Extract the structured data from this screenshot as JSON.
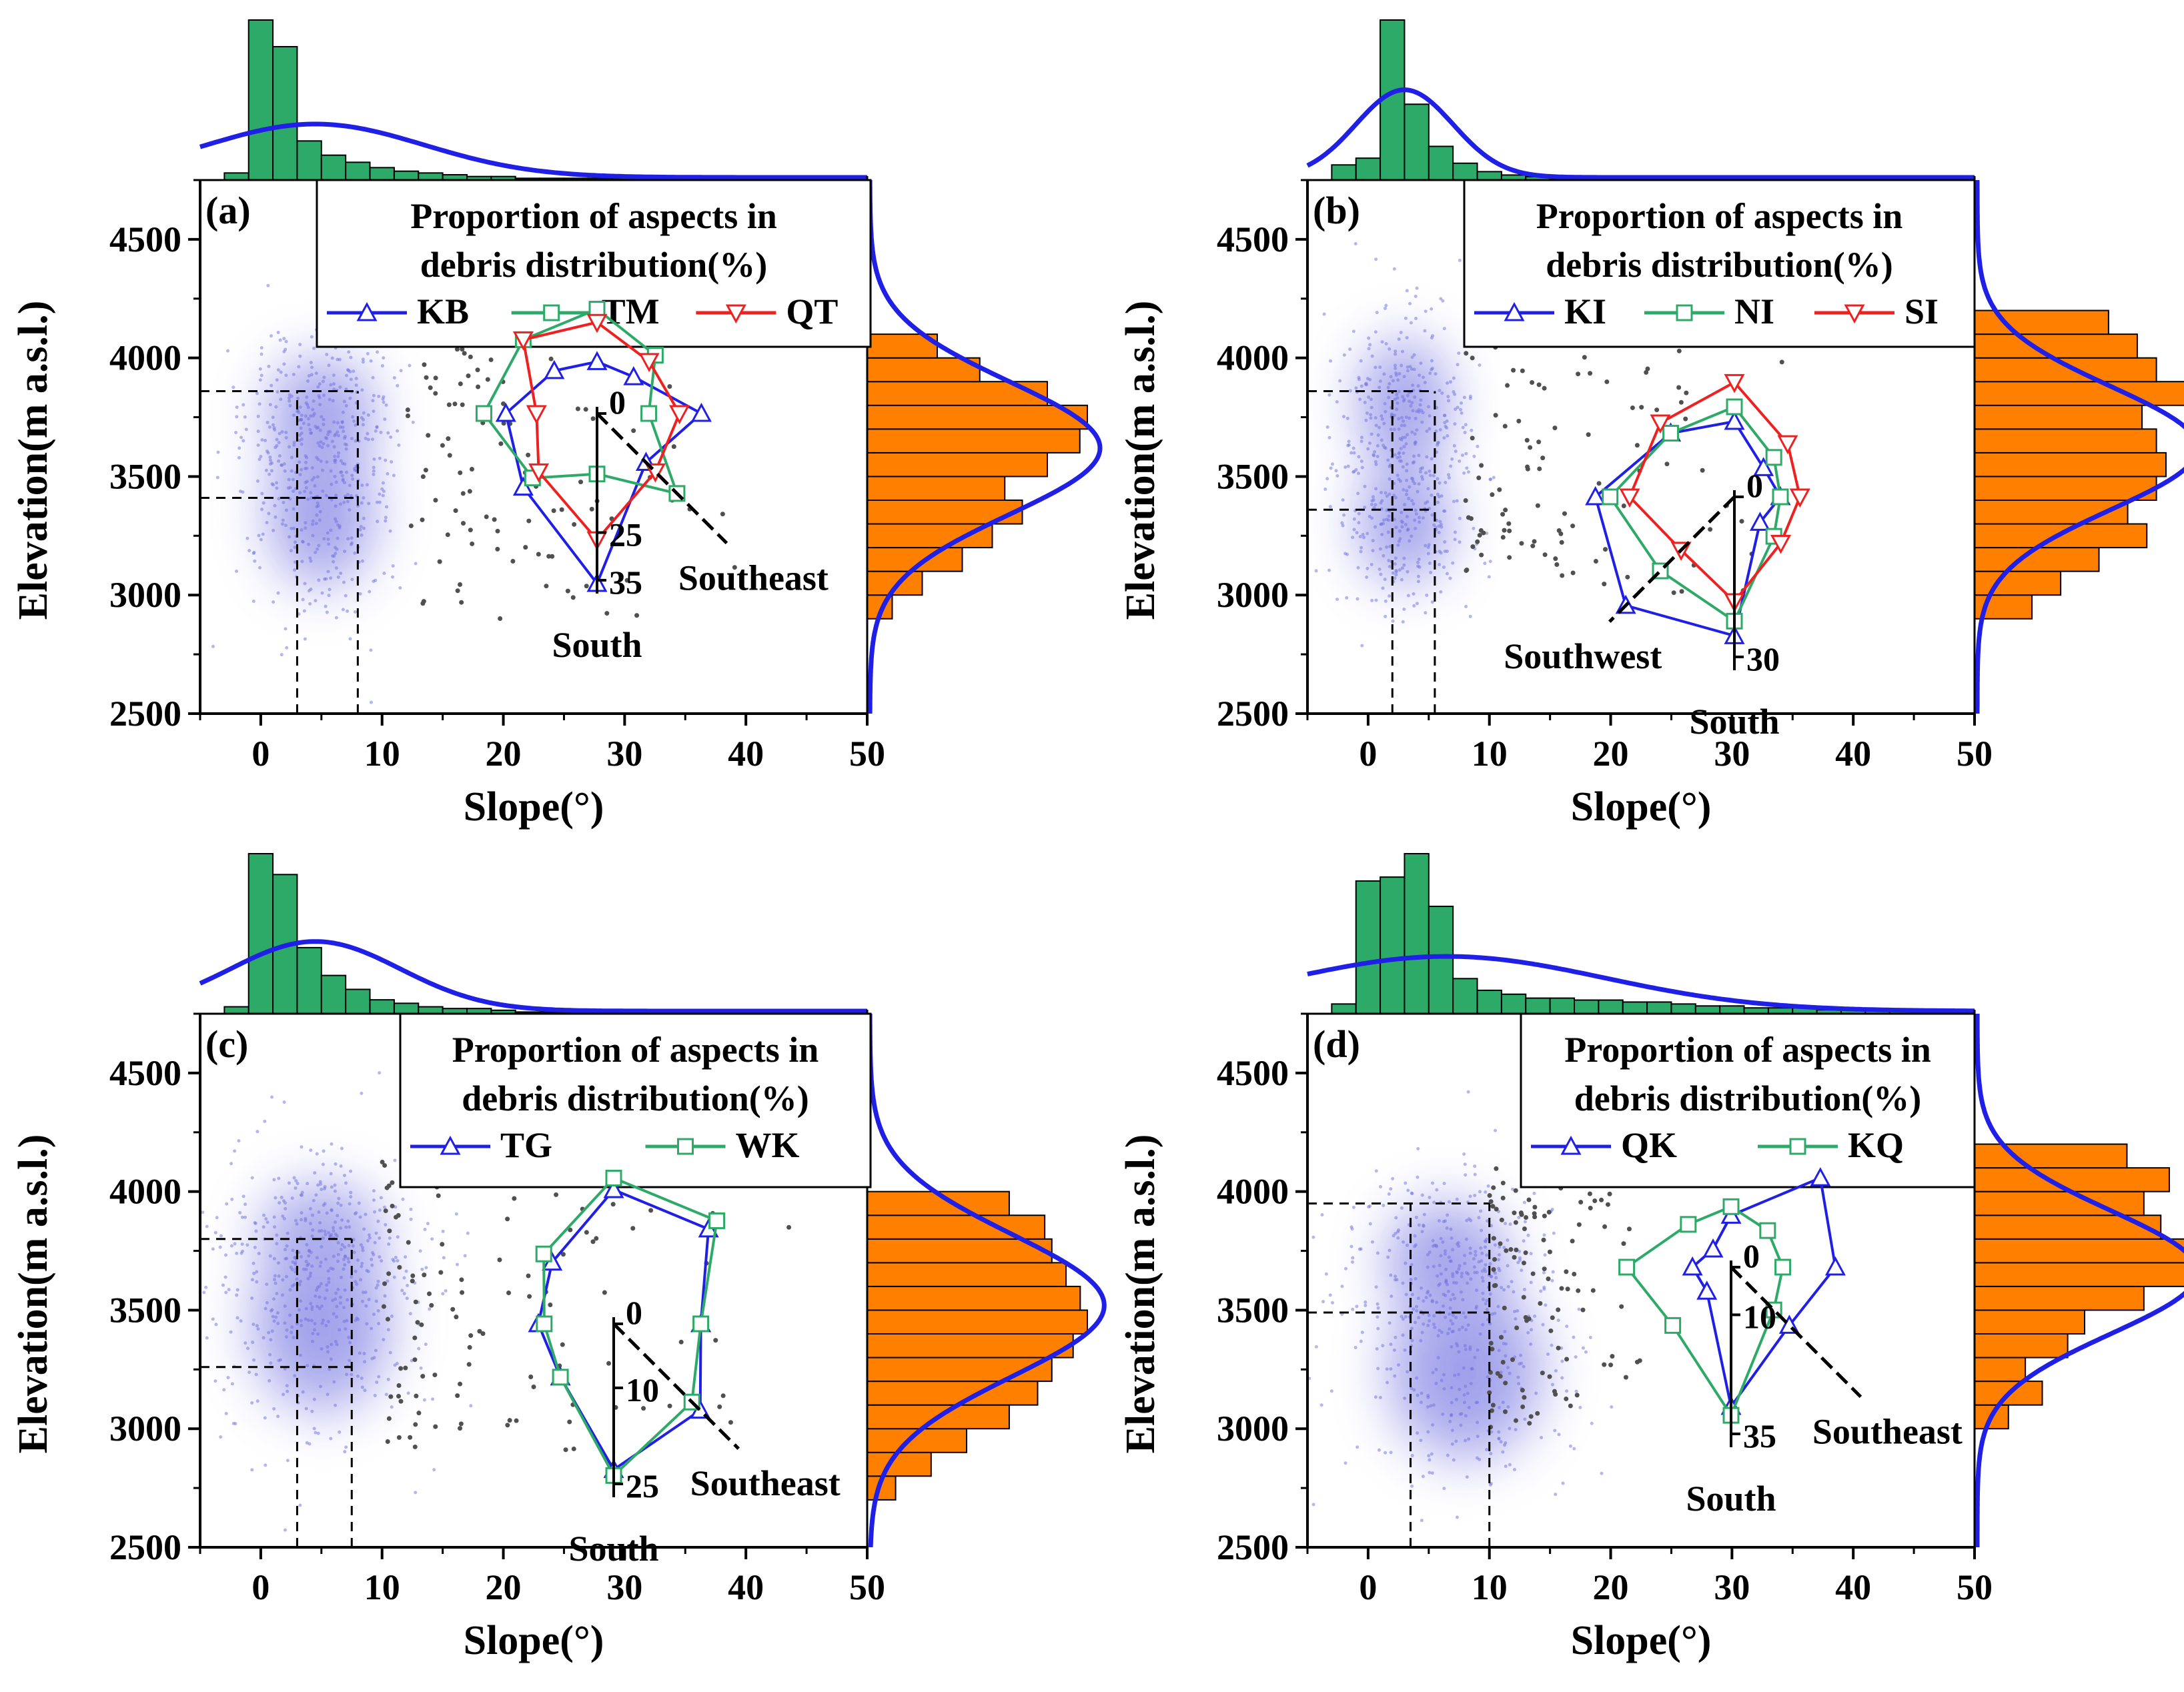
{
  "colors": {
    "hist_top": "#2eaa68",
    "hist_right": "#ff7f00",
    "curve": "#1f1fe6",
    "line_a": "#1f1fe6",
    "line_b": "#2eaa68",
    "line_c": "#ee2020",
    "density": "#6f6fe0",
    "scatter": "#505050"
  },
  "chart_data": [
    {
      "id": "a",
      "type": "scatter",
      "label": "(a)",
      "xlabel": "Slope(°)",
      "ylabel": "Elevation(m a.s.l.)",
      "xlim": [
        -5,
        50
      ],
      "ylim": [
        2500,
        4750
      ],
      "xticks": [
        "0",
        "10",
        "20",
        "30",
        "40",
        "50"
      ],
      "yticks": [
        "2500",
        "3000",
        "3500",
        "4000",
        "4500"
      ],
      "xtick_values": [
        0,
        10,
        20,
        30,
        40,
        50
      ],
      "ytick_values": [
        2500,
        3000,
        3500,
        4000,
        4500
      ],
      "density_centers": [
        {
          "x": 5,
          "y": 3750,
          "sx": 3.5,
          "sy": 200
        },
        {
          "x": 5,
          "y": 3350,
          "sx": 3.5,
          "sy": 250
        }
      ],
      "scatter_range": {
        "x": [
          12,
          42
        ],
        "y": [
          2900,
          4300
        ]
      },
      "guide_x": [
        3,
        8
      ],
      "guide_y": [
        3410,
        3860
      ],
      "top_hist": {
        "bins": [
          -3,
          -1,
          1,
          3,
          5,
          7,
          9,
          11,
          13,
          15,
          17,
          19,
          21,
          23,
          25,
          27,
          29,
          31,
          33,
          35,
          37,
          39,
          41
        ],
        "counts": [
          4,
          90,
          75,
          22,
          14,
          10,
          7,
          5,
          4,
          3,
          2,
          2,
          1,
          1,
          1,
          1,
          1,
          1,
          0.5,
          0.5,
          0.5,
          0.5
        ]
      },
      "top_curve": {
        "mu": 4.5,
        "sigma": 9,
        "peak": 30
      },
      "right_hist": {
        "bins": [
          2900,
          3000,
          3100,
          3200,
          3300,
          3400,
          3500,
          3600,
          3700,
          3800,
          3900,
          4000,
          4100
        ],
        "counts": [
          10,
          22,
          38,
          50,
          62,
          55,
          72,
          85,
          88,
          72,
          45,
          28
        ]
      },
      "right_curve": {
        "mu": 3620,
        "sigma": 280,
        "peak": 92
      },
      "legend": {
        "title": [
          "Proportion of aspects in",
          "debris distribution(%)"
        ],
        "entries": [
          "KB",
          "TM",
          "QT"
        ]
      },
      "radar": {
        "dir_label": "Southeast",
        "axis_label": "South",
        "ticks": [
          "0",
          "25",
          "35"
        ],
        "tick_values": [
          0,
          25,
          35
        ],
        "series": [
          [
            8,
            8,
            20,
            12,
            35,
            20,
            17,
            10
          ],
          [
            20,
            15,
            8,
            22,
            10,
            17,
            22,
            20
          ],
          [
            17,
            13,
            15,
            15,
            25,
            15,
            10,
            20
          ]
        ]
      }
    },
    {
      "id": "b",
      "type": "scatter",
      "label": "(b)",
      "xlabel": "Slope(°)",
      "ylabel": "Elevation(m a.s.l.)",
      "xlim": [
        -5,
        50
      ],
      "ylim": [
        2500,
        4750
      ],
      "xticks": [
        "0",
        "10",
        "20",
        "30",
        "40",
        "50"
      ],
      "yticks": [
        "2500",
        "3000",
        "3500",
        "4000",
        "4500"
      ],
      "xtick_values": [
        0,
        10,
        20,
        30,
        40,
        50
      ],
      "ytick_values": [
        2500,
        3000,
        3500,
        4000,
        4500
      ],
      "density_centers": [
        {
          "x": 3,
          "y": 3800,
          "sx": 3,
          "sy": 220
        },
        {
          "x": 3,
          "y": 3300,
          "sx": 3,
          "sy": 200
        }
      ],
      "scatter_range": {
        "x": [
          8,
          35
        ],
        "y": [
          3000,
          4200
        ]
      },
      "guide_x": [
        2,
        5.5
      ],
      "guide_y": [
        3360,
        3860
      ],
      "top_hist": {
        "bins": [
          -3,
          -1,
          1,
          3,
          5,
          7,
          9,
          11,
          13,
          15,
          17,
          19,
          21,
          23,
          25,
          27,
          29,
          31,
          33,
          35,
          37,
          39,
          41
        ],
        "counts": [
          9,
          13,
          95,
          45,
          20,
          10,
          5,
          3,
          2,
          1,
          1,
          1,
          1,
          1,
          1,
          1,
          1,
          1,
          1,
          0.5,
          0.5,
          0.5
        ]
      },
      "top_curve": {
        "mu": 3,
        "sigma": 4,
        "peak": 52
      },
      "right_hist": {
        "bins": [
          2900,
          3000,
          3100,
          3200,
          3300,
          3400,
          3500,
          3600,
          3700,
          3800,
          3900,
          4000,
          4100,
          4200
        ],
        "counts": [
          12,
          18,
          26,
          36,
          32,
          38,
          40,
          38,
          35,
          46,
          38,
          34,
          28
        ]
      },
      "right_curve": {
        "mu": 3620,
        "sigma": 260,
        "peak": 46
      },
      "legend": {
        "title": [
          "Proportion of aspects in",
          "debris distribution(%)"
        ],
        "entries": [
          "KI",
          "NI",
          "SI"
        ]
      },
      "radar": {
        "dir_label": "Southwest",
        "axis_label": "South",
        "ticks": [
          "0",
          "30"
        ],
        "tick_values": [
          0,
          30
        ],
        "series": [
          [
            12,
            5,
            6,
            4,
            25,
            28,
            25,
            15
          ],
          [
            15,
            8,
            6,
            8,
            22,
            18,
            22,
            15
          ],
          [
            20,
            12,
            10,
            10,
            18,
            12,
            18,
            18
          ]
        ]
      }
    },
    {
      "id": "c",
      "type": "scatter",
      "label": "(c)",
      "xlabel": "Slope(°)",
      "ylabel": "Elevation(m a.s.l.)",
      "xlim": [
        -5,
        50
      ],
      "ylim": [
        2500,
        4750
      ],
      "xticks": [
        "0",
        "10",
        "20",
        "30",
        "40",
        "50"
      ],
      "yticks": [
        "2500",
        "3000",
        "3500",
        "4000",
        "4500"
      ],
      "xtick_values": [
        0,
        10,
        20,
        30,
        40,
        50
      ],
      "ytick_values": [
        2500,
        3000,
        3500,
        4000,
        4500
      ],
      "density_centers": [
        {
          "x": 5,
          "y": 3800,
          "sx": 4,
          "sy": 180
        },
        {
          "x": 5,
          "y": 3450,
          "sx": 4.5,
          "sy": 300
        }
      ],
      "scatter_range": {
        "x": [
          10,
          45
        ],
        "y": [
          2900,
          4200
        ]
      },
      "guide_x": [
        3,
        7.5
      ],
      "guide_y": [
        3260,
        3800
      ],
      "top_hist": {
        "bins": [
          -3,
          -1,
          1,
          3,
          5,
          7,
          9,
          11,
          13,
          15,
          17,
          19,
          21,
          23,
          25,
          27,
          29,
          31,
          33,
          35,
          37,
          39,
          41
        ],
        "counts": [
          4,
          92,
          80,
          38,
          22,
          14,
          8,
          6,
          4,
          3,
          3,
          2,
          1,
          1,
          1,
          1,
          1,
          1,
          0.5,
          0.5,
          0.5,
          0.5
        ]
      },
      "top_curve": {
        "mu": 4.5,
        "sigma": 7,
        "peak": 40
      },
      "right_hist": {
        "bins": [
          2700,
          2800,
          2900,
          3000,
          3100,
          3200,
          3300,
          3400,
          3500,
          3600,
          3700,
          3800,
          3900,
          4000,
          4100
        ],
        "counts": [
          8,
          18,
          28,
          40,
          48,
          52,
          58,
          62,
          60,
          56,
          52,
          50,
          40,
          0
        ]
      },
      "right_curve": {
        "mu": 3520,
        "sigma": 300,
        "peak": 66
      },
      "legend": {
        "title": [
          "Proportion of aspects in",
          "debris distribution(%)"
        ],
        "entries": [
          "TG",
          "WK"
        ]
      },
      "radar": {
        "dir_label": "Southeast",
        "axis_label": "South",
        "ticks": [
          "0",
          "10",
          "25"
        ],
        "tick_values": [
          0,
          10,
          25
        ],
        "series": [
          [
            20,
            20,
            12,
            18,
            22,
            10,
            10,
            12
          ],
          [
            22,
            22,
            12,
            16,
            23,
            10,
            9,
            14
          ]
        ]
      }
    },
    {
      "id": "d",
      "type": "scatter",
      "label": "(d)",
      "xlabel": "Slope(°)",
      "ylabel": "Elevation(m a.s.l.)",
      "xlim": [
        -5,
        50
      ],
      "ylim": [
        2500,
        4750
      ],
      "xticks": [
        "0",
        "10",
        "20",
        "30",
        "40",
        "50"
      ],
      "yticks": [
        "2500",
        "3000",
        "3500",
        "4000",
        "4500"
      ],
      "xtick_values": [
        0,
        10,
        20,
        30,
        40,
        50
      ],
      "ytick_values": [
        2500,
        3000,
        3500,
        4000,
        4500
      ],
      "density_centers": [
        {
          "x": 6.5,
          "y": 3700,
          "sx": 4,
          "sy": 200
        },
        {
          "x": 8,
          "y": 3250,
          "sx": 5,
          "sy": 300
        }
      ],
      "scatter_range": {
        "x": [
          10,
          25
        ],
        "y": [
          3000,
          4100
        ]
      },
      "guide_x": [
        3.5,
        10
      ],
      "guide_y": [
        3490,
        3950
      ],
      "top_hist": {
        "bins": [
          -3,
          -1,
          1,
          3,
          5,
          7,
          9,
          11,
          13,
          15,
          17,
          19,
          21,
          23,
          25,
          27,
          29,
          31,
          33,
          35,
          37,
          39,
          41,
          43,
          45,
          47
        ],
        "counts": [
          5,
          68,
          70,
          82,
          55,
          18,
          12,
          10,
          8,
          8,
          7,
          7,
          6,
          6,
          5,
          4,
          4,
          3,
          3,
          3,
          2,
          2,
          2,
          2,
          1
        ]
      },
      "top_curve": {
        "mu": 6.5,
        "sigma": 13,
        "peak": 28
      },
      "right_hist": {
        "bins": [
          3000,
          3100,
          3200,
          3300,
          3400,
          3500,
          3600,
          3700,
          3800,
          3900,
          4000,
          4100,
          4200
        ],
        "counts": [
          8,
          16,
          12,
          22,
          26,
          40,
          50,
          52,
          44,
          40,
          46,
          36
        ]
      },
      "right_curve": {
        "mu": 3660,
        "sigma": 260,
        "peak": 52
      },
      "legend": {
        "title": [
          "Proportion of aspects in",
          "debris distribution(%)"
        ],
        "entries": [
          "QK",
          "KQ"
        ]
      },
      "radar": {
        "dir_label": "Southeast",
        "axis_label": "South",
        "ticks": [
          "0",
          "10",
          "35"
        ],
        "tick_values": [
          0,
          10,
          35
        ],
        "series": [
          [
            8,
            25,
            20,
            15,
            28,
            4,
            5,
            2
          ],
          [
            10,
            8,
            8,
            10,
            30,
            15,
            20,
            10
          ]
        ]
      }
    }
  ]
}
